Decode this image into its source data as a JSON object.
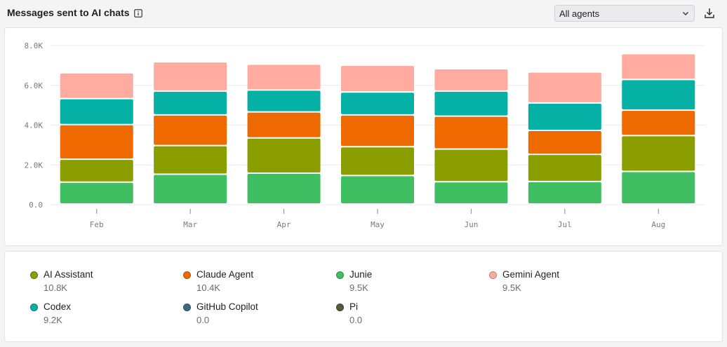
{
  "header": {
    "title": "Messages sent to AI chats",
    "info_icon": "info-icon",
    "agent_select": {
      "value": "All agents",
      "icon": "chevron-down-icon"
    },
    "download_icon": "download-icon"
  },
  "chart_data": {
    "type": "bar",
    "stacked": true,
    "categories": [
      "Feb",
      "Mar",
      "Apr",
      "May",
      "Jun",
      "Jul",
      "Aug"
    ],
    "ylim": [
      0,
      8000
    ],
    "yticks": [
      "0.0",
      "2.0K",
      "4.0K",
      "6.0K",
      "8.0K"
    ],
    "ytick_values": [
      0,
      2000,
      4000,
      6000,
      8000
    ],
    "grid": true,
    "legend_position": "bottom",
    "series": [
      {
        "name": "Junie",
        "color": "#3fbe62",
        "values": [
          1100,
          1500,
          1550,
          1430,
          1120,
          1130,
          1640
        ]
      },
      {
        "name": "AI Assistant",
        "color": "#8a9e00",
        "values": [
          1150,
          1440,
          1770,
          1450,
          1640,
          1370,
          1800
        ]
      },
      {
        "name": "Claude Agent",
        "color": "#ee6a00",
        "values": [
          1740,
          1540,
          1310,
          1600,
          1660,
          1200,
          1280
        ]
      },
      {
        "name": "Codex",
        "color": "#05b0a5",
        "values": [
          1310,
          1200,
          1100,
          1150,
          1260,
          1380,
          1540
        ]
      },
      {
        "name": "Gemini Agent",
        "color": "#ffaba0",
        "values": [
          1300,
          1470,
          1300,
          1350,
          1120,
          1560,
          1300
        ]
      },
      {
        "name": "GitHub Copilot",
        "color": "#3e6b82",
        "values": [
          0,
          0,
          0,
          0,
          0,
          0,
          0
        ]
      },
      {
        "name": "Pi",
        "color": "#545a3c",
        "values": [
          0,
          0,
          0,
          0,
          0,
          0,
          0
        ]
      }
    ]
  },
  "legend": [
    {
      "name": "AI Assistant",
      "total": "10.8K",
      "color": "#8a9e00"
    },
    {
      "name": "Claude Agent",
      "total": "10.4K",
      "color": "#ee6a00"
    },
    {
      "name": "Junie",
      "total": "9.5K",
      "color": "#3fbe62"
    },
    {
      "name": "Gemini Agent",
      "total": "9.5K",
      "color": "#ffaba0"
    },
    {
      "name": "Codex",
      "total": "9.2K",
      "color": "#05b0a5"
    },
    {
      "name": "GitHub Copilot",
      "total": "0.0",
      "color": "#3e6b82"
    },
    {
      "name": "Pi",
      "total": "0.0",
      "color": "#545a3c"
    }
  ]
}
